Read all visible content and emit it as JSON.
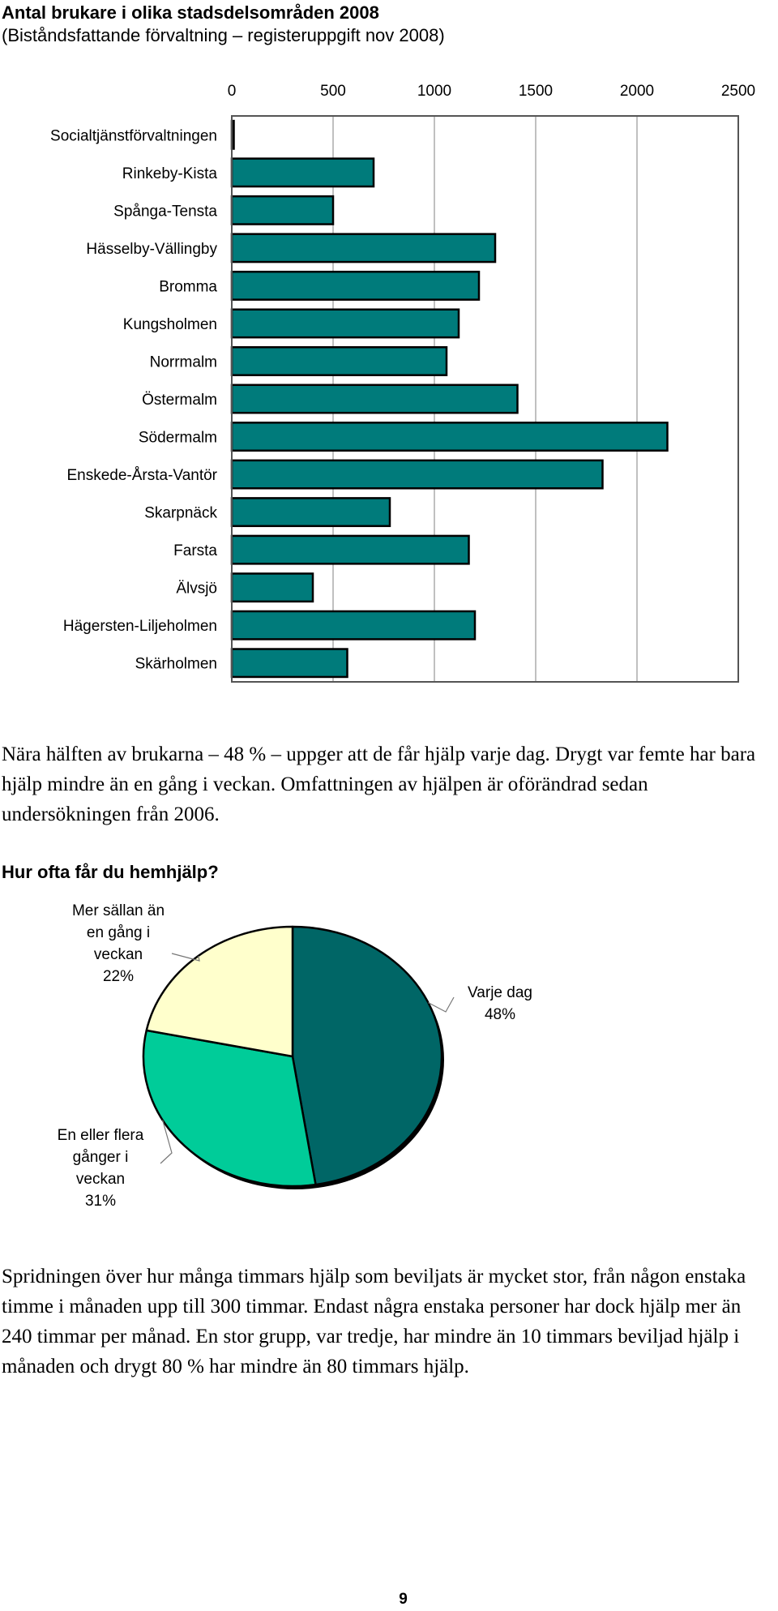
{
  "page": {
    "paragraph_1": "Nära hälften av brukarna – 48 % – uppger att de får hjälp varje dag. Drygt var femte har bara hjälp mindre än en gång i veckan. Omfattningen av hjälpen är oförändrad sedan undersökningen från 2006.",
    "paragraph_2": "Spridningen över hur många timmars hjälp som beviljats är mycket stor, från någon enstaka timme i månaden upp till 300 timmar. Endast några enstaka personer har dock hjälp mer än 240 timmar per månad. En stor grupp, var tredje, har mindre än 10 timmars beviljad hjälp i månaden och drygt 80 % har mindre än 80 timmars hjälp.",
    "page_number": "9"
  },
  "colors": {
    "bar_fill": "#007B7B",
    "bar_stroke": "#000000",
    "grid": "#C0C0C0",
    "pie_daily": "#006666",
    "pie_weekly": "#00CC99",
    "pie_rare": "#FFFFCC"
  },
  "chart_data": [
    {
      "type": "bar",
      "orientation": "horizontal",
      "title": "Antal brukare i olika stadsdelsområden 2008",
      "subtitle": "(Biståndsfattande förvaltning – registeruppgift nov 2008)",
      "categories": [
        "Socialtjänstförvaltningen",
        "Rinkeby-Kista",
        "Spånga-Tensta",
        "Hässelby-Vällingby",
        "Bromma",
        "Kungsholmen",
        "Norrmalm",
        "Östermalm",
        "Södermalm",
        "Enskede-Årsta-Vantör",
        "Skarpnäck",
        "Farsta",
        "Älvsjö",
        "Hägersten-Liljeholmen",
        "Skärholmen"
      ],
      "values": [
        10,
        700,
        500,
        1300,
        1220,
        1120,
        1060,
        1410,
        2150,
        1830,
        780,
        1170,
        400,
        1200,
        570
      ],
      "xlim": [
        0,
        2500
      ],
      "xticks": [
        "0",
        "500",
        "1000",
        "1500",
        "2000",
        "2500"
      ],
      "xaxis_position": "top",
      "grid": true,
      "legend": "none"
    },
    {
      "type": "pie",
      "title": "Hur ofta får du hemhjälp?",
      "slices": [
        {
          "label": "Varje dag",
          "value": 48,
          "pct_label": "48%"
        },
        {
          "label": "En eller flera gånger i veckan",
          "value": 31,
          "pct_label": "31%"
        },
        {
          "label": "Mer sällan än en gång i veckan",
          "value": 22,
          "pct_label": "22%"
        }
      ]
    }
  ]
}
